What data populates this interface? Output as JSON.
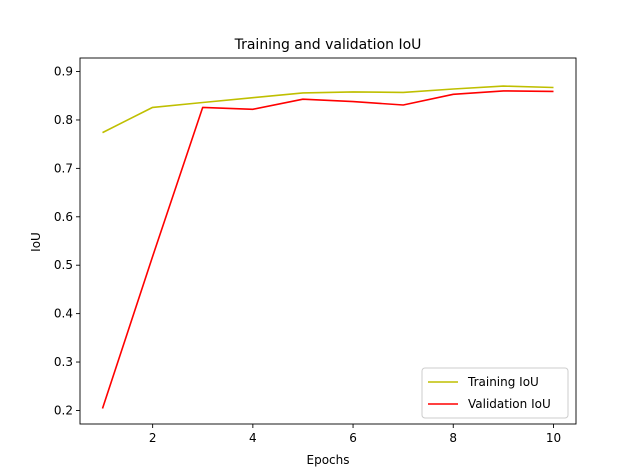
{
  "chart_data": {
    "type": "line",
    "title": "Training and validation IoU",
    "xlabel": "Epochs",
    "ylabel": "IoU",
    "xlim": [
      0.55,
      10.45
    ],
    "ylim": [
      0.172,
      0.928
    ],
    "xticks": [
      2,
      4,
      6,
      8,
      10
    ],
    "yticks": [
      0.2,
      0.3,
      0.4,
      0.5,
      0.6,
      0.7,
      0.8,
      0.9
    ],
    "x": [
      1,
      2,
      3,
      4,
      5,
      6,
      7,
      8,
      9,
      10
    ],
    "series": [
      {
        "name": "Training IoU",
        "color": "#bfbf00",
        "values": [
          0.774,
          0.826,
          0.836,
          0.846,
          0.856,
          0.858,
          0.857,
          0.864,
          0.87,
          0.867
        ]
      },
      {
        "name": "Validation IoU",
        "color": "#ff0000",
        "values": [
          0.204,
          0.518,
          0.826,
          0.822,
          0.843,
          0.838,
          0.831,
          0.853,
          0.86,
          0.859
        ]
      }
    ],
    "grid": false,
    "legend_position": "lower-right"
  }
}
